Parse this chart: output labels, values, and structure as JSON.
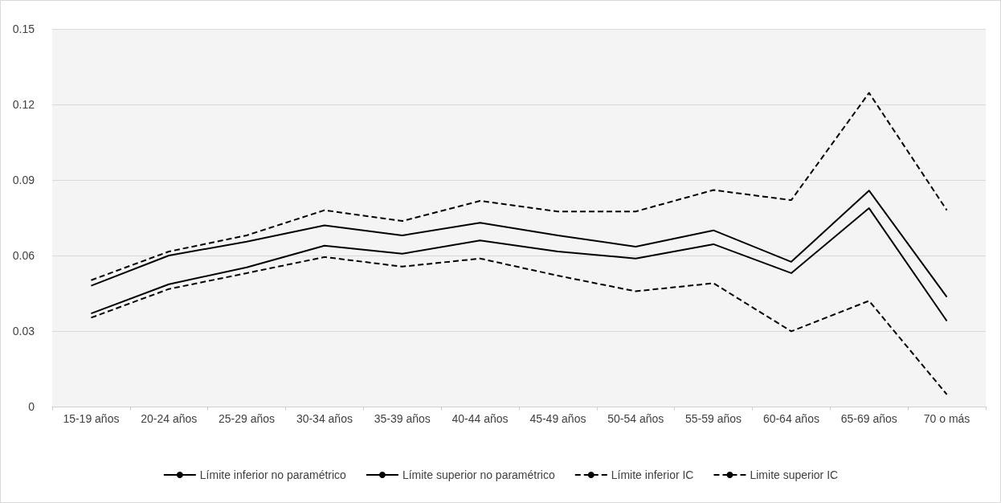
{
  "chart_data": {
    "type": "line",
    "categories": [
      "15-19 años",
      "20-24 años",
      "25-29 años",
      "30-34 años",
      "35-39 años",
      "40-44 años",
      "45-49 años",
      "50-54 años",
      "55-59 años",
      "60-64 años",
      "65-69 años",
      "70 o más"
    ],
    "series": [
      {
        "name": "Límite inferior no paramétrico",
        "color": "#000000",
        "line_style": "solid",
        "values": [
          0.037,
          0.0486,
          0.0553,
          0.0639,
          0.0607,
          0.066,
          0.0616,
          0.0588,
          0.0645,
          0.053,
          0.0788,
          0.034
        ]
      },
      {
        "name": "Límite superior no paramétrico",
        "color": "#000000",
        "line_style": "solid",
        "values": [
          0.048,
          0.06,
          0.0655,
          0.072,
          0.068,
          0.073,
          0.068,
          0.0635,
          0.07,
          0.0575,
          0.0858,
          0.0435
        ]
      },
      {
        "name": "Límite inferior IC",
        "color": "#000000",
        "line_style": "dashed",
        "values": [
          0.0353,
          0.0467,
          0.053,
          0.0594,
          0.0556,
          0.0588,
          0.052,
          0.0458,
          0.049,
          0.0299,
          0.042,
          0.0048
        ]
      },
      {
        "name": "Limite superior IC",
        "color": "#000000",
        "line_style": "dashed",
        "values": [
          0.0502,
          0.0616,
          0.068,
          0.078,
          0.0737,
          0.0817,
          0.0775,
          0.0775,
          0.086,
          0.082,
          0.1246,
          0.078
        ]
      }
    ],
    "ylim": [
      0,
      0.15
    ],
    "yticks": [
      0,
      0.03,
      0.06,
      0.09,
      0.12,
      0.15
    ],
    "grid": "y",
    "legend": "bottom",
    "marker": "none"
  }
}
